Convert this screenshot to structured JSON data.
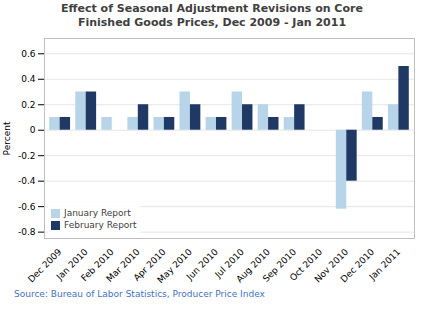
{
  "chart_data": {
    "type": "bar",
    "title": "Effect of Seasonal Adjustment Revisions on Core\nFinished Goods Prices, Dec 2009 - Jan 2011",
    "ylabel": "Percent",
    "source": "Source: Bureau of Labor Statistics, Producer Price Index",
    "categories": [
      "Dec 2009",
      "Jan 2010",
      "Feb 2010",
      "Mar 2010",
      "Apr 2010",
      "May 2010",
      "Jun 2010",
      "Jul 2010",
      "Aug 2010",
      "Sep 2010",
      "Oct 2010",
      "Nov 2010",
      "Dec 2010",
      "Jan 2011"
    ],
    "series": [
      {
        "name": "January Report",
        "color": "#b8d4e8",
        "values": [
          0.1,
          0.3,
          0.1,
          0.1,
          0.1,
          0.3,
          0.1,
          0.3,
          0.2,
          0.1,
          0.0,
          -0.62,
          0.3,
          0.2
        ]
      },
      {
        "name": "February Report",
        "color": "#1f3864",
        "values": [
          0.1,
          0.3,
          0.0,
          0.2,
          0.1,
          0.2,
          0.1,
          0.2,
          0.1,
          0.2,
          0.0,
          -0.4,
          0.1,
          0.5
        ]
      }
    ],
    "ylim": [
      -0.85,
      0.72
    ],
    "yticks": [
      -0.8,
      -0.6,
      -0.4,
      -0.2,
      0,
      0.2,
      0.4,
      0.6
    ],
    "grid": true,
    "legend": "lower left"
  }
}
